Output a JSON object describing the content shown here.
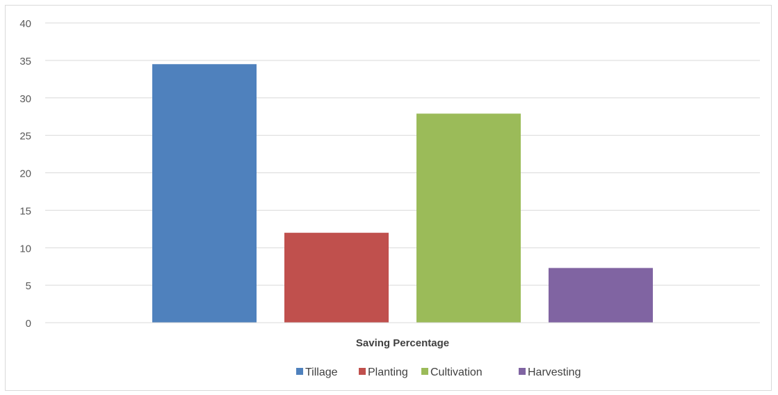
{
  "chart_data": {
    "type": "bar",
    "title": "",
    "xlabel": "Saving Percentage",
    "ylabel": "",
    "ylim": [
      0,
      40
    ],
    "yticks": [
      0,
      5,
      10,
      15,
      20,
      25,
      30,
      35,
      40
    ],
    "grid": true,
    "legend_position": "bottom",
    "categories": [
      "Saving Percentage"
    ],
    "series": [
      {
        "name": "Tillage",
        "values": [
          34.5
        ],
        "color": "#4F81BD"
      },
      {
        "name": "Planting",
        "values": [
          12.0
        ],
        "color": "#C0504D"
      },
      {
        "name": "Cultivation",
        "values": [
          27.9
        ],
        "color": "#9BBB59"
      },
      {
        "name": "Harvesting",
        "values": [
          7.3
        ],
        "color": "#8064A2"
      }
    ]
  }
}
